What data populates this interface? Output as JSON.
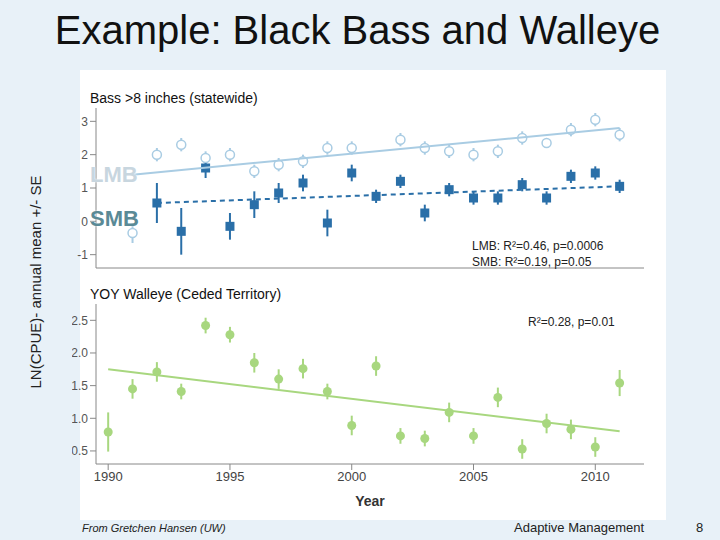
{
  "slide": {
    "title": "Example: Black Bass and Walleye",
    "y_label": "LN(CPUE)- annual mean +/- SE",
    "source": "From Gretchen Hansen (UW)",
    "footer": "Adaptive Management",
    "page": "8"
  },
  "chart_data": [
    {
      "type": "scatter",
      "title": "Bass >8 inches (statewide)",
      "xlim": [
        1989.5,
        2012
      ],
      "xticks": [
        1990,
        1995,
        2000,
        2005,
        2010
      ],
      "ylim": [
        -1.4,
        3.4
      ],
      "yticks": [
        -1,
        0,
        1,
        2,
        3
      ],
      "tick_labels": "y",
      "grid": false,
      "annotations": [
        "LMB: R²=0.46, p=0.0006",
        "SMB: R²=0.19, p=0.05"
      ],
      "series": [
        {
          "name": "LMB",
          "color": "#a9cce3",
          "marker": "open_circle",
          "line_style": "solid",
          "x": [
            1991,
            1992,
            1993,
            1994,
            1995,
            1996,
            1997,
            1998,
            1999,
            2000,
            2002,
            2003,
            2004,
            2005,
            2006,
            2007,
            2008,
            2009,
            2010,
            2011
          ],
          "values": [
            -0.35,
            2.0,
            2.3,
            1.9,
            2.0,
            1.5,
            1.7,
            1.8,
            2.2,
            2.2,
            2.45,
            2.2,
            2.1,
            2.0,
            2.1,
            2.5,
            2.35,
            2.75,
            3.05,
            2.6
          ],
          "errors": [
            0.3,
            0.2,
            0.2,
            0.2,
            0.2,
            0.2,
            0.2,
            0.2,
            0.2,
            0.2,
            0.2,
            0.2,
            0.2,
            0.2,
            0.2,
            0.2,
            0.15,
            0.2,
            0.2,
            0.2
          ],
          "trend": {
            "x": [
              1991,
              2011
            ],
            "values": [
              1.4,
              2.8
            ]
          }
        },
        {
          "name": "SMB",
          "color": "#2a6fa8",
          "marker": "square",
          "line_style": "dashed",
          "x": [
            1992,
            1993,
            1994,
            1995,
            1996,
            1997,
            1998,
            1999,
            2000,
            2001,
            2002,
            2003,
            2004,
            2005,
            2006,
            2007,
            2008,
            2009,
            2010,
            2011
          ],
          "values": [
            0.55,
            -0.3,
            1.6,
            -0.15,
            0.5,
            0.85,
            1.15,
            -0.05,
            1.45,
            0.75,
            1.2,
            0.25,
            0.95,
            0.7,
            0.7,
            1.1,
            0.7,
            1.35,
            1.45,
            1.05
          ],
          "errors": [
            0.6,
            0.7,
            0.3,
            0.4,
            0.4,
            0.3,
            0.25,
            0.4,
            0.25,
            0.2,
            0.2,
            0.25,
            0.2,
            0.2,
            0.2,
            0.2,
            0.2,
            0.2,
            0.2,
            0.2
          ],
          "trend": {
            "x": [
              1992,
              2011
            ],
            "values": [
              0.55,
              1.05
            ]
          }
        }
      ]
    },
    {
      "type": "scatter",
      "title": "YOY Walleye (Ceded Territory)",
      "x_label": "Year",
      "xlim": [
        1989.5,
        2012
      ],
      "xticks": [
        1990,
        1995,
        2000,
        2005,
        2010
      ],
      "ylim": [
        0.3,
        2.75
      ],
      "yticks": [
        0.5,
        1.0,
        1.5,
        2.0,
        2.5
      ],
      "grid": false,
      "annotations": [
        "R²=0.28, p=0.01"
      ],
      "series": [
        {
          "color": "#a8d77f",
          "marker": "circle",
          "line_style": "solid",
          "x": [
            1990,
            1991,
            1992,
            1993,
            1994,
            1995,
            1996,
            1997,
            1998,
            1999,
            2000,
            2001,
            2002,
            2003,
            2004,
            2005,
            2006,
            2007,
            2008,
            2009,
            2010,
            2011
          ],
          "values": [
            0.79,
            1.45,
            1.71,
            1.41,
            2.42,
            2.28,
            1.85,
            1.6,
            1.76,
            1.41,
            0.89,
            1.8,
            0.73,
            0.69,
            1.09,
            0.73,
            1.32,
            0.53,
            0.92,
            0.83,
            0.56,
            1.54
          ],
          "errors": [
            0.3,
            0.15,
            0.15,
            0.12,
            0.12,
            0.12,
            0.15,
            0.15,
            0.15,
            0.12,
            0.15,
            0.15,
            0.12,
            0.12,
            0.15,
            0.12,
            0.15,
            0.15,
            0.15,
            0.15,
            0.15,
            0.2
          ],
          "trend": {
            "x": [
              1990,
              2011
            ],
            "values": [
              1.75,
              0.8
            ]
          }
        }
      ]
    }
  ]
}
